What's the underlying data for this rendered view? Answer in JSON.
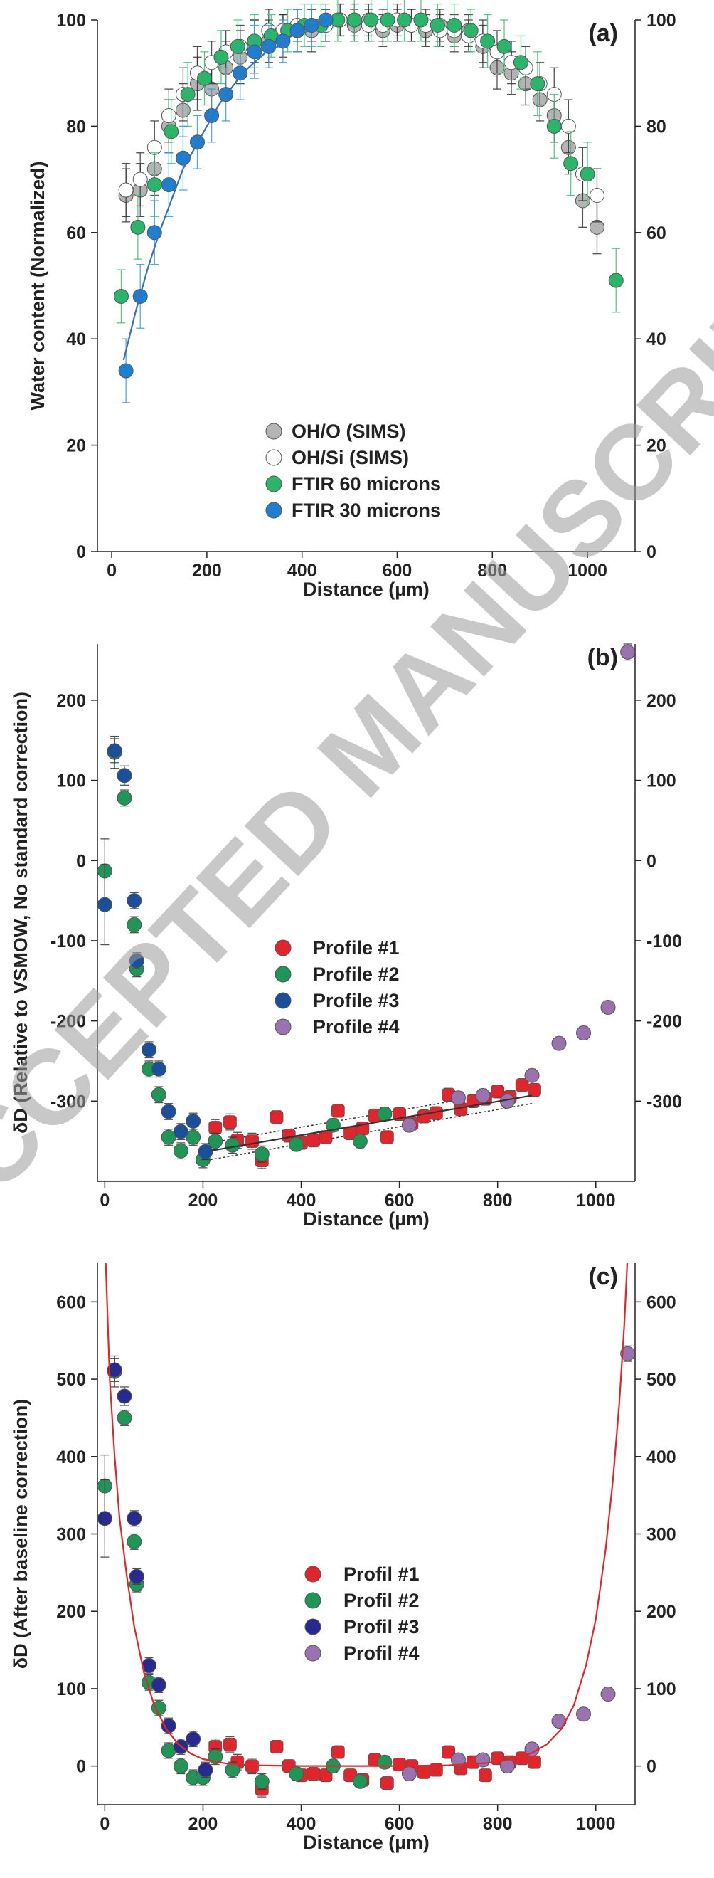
{
  "watermark": "ACCEPTED MANUSCRIPT",
  "colors": {
    "gray": "#b4b4b4",
    "white": "#ffffff",
    "green": "#2ab56a",
    "blue_a": "#1e7fd0",
    "red": "#e0262c",
    "green_b": "#1f9655",
    "navy_b": "#1b4f9a",
    "navy_c": "#272a8e",
    "purple": "#9b72b0",
    "fit_blue": "#3a6fb8",
    "fit_red": "#e0262c",
    "err_green": "#3fbf78",
    "err_blue": "#3b97dd",
    "err_dark": "#333333"
  },
  "chart_data": [
    {
      "id": "a",
      "type": "scatter",
      "panel_label": "(a)",
      "xlabel": "Distance (µm)",
      "ylabel": "Water content (Normalized)",
      "xlim": [
        -30,
        1100
      ],
      "ylim": [
        0,
        100
      ],
      "xticks": [
        0,
        200,
        400,
        600,
        800,
        1000
      ],
      "yticks": [
        0,
        20,
        40,
        60,
        80,
        100
      ],
      "right_axis": true,
      "grid": false,
      "legend_position": "lower-center",
      "series": [
        {
          "name": "OH/O (SIMS)",
          "color_key": "gray",
          "err_key": "err_dark",
          "x": [
            30,
            60,
            90,
            120,
            150,
            180,
            210,
            240,
            270,
            300,
            330,
            360,
            390,
            420,
            450,
            480,
            510,
            540,
            570,
            600,
            630,
            660,
            690,
            720,
            750,
            780,
            810,
            840,
            870,
            900,
            930,
            960,
            990,
            1020
          ],
          "y": [
            67,
            68,
            72,
            80,
            83,
            88,
            87,
            91,
            93,
            95,
            96,
            97,
            98,
            98,
            99,
            100,
            99,
            100,
            98,
            99,
            99,
            98,
            99,
            97,
            98,
            95,
            91,
            90,
            88,
            85,
            82,
            76,
            66,
            61
          ],
          "err": [
            5,
            5,
            5,
            5,
            5,
            5,
            5,
            5,
            5,
            5,
            4,
            4,
            4,
            4,
            3,
            3,
            3,
            3,
            3,
            3,
            3,
            3,
            3,
            3,
            3,
            4,
            4,
            4,
            4,
            4,
            5,
            5,
            5,
            5
          ]
        },
        {
          "name": "OH/Si (SIMS)",
          "color_key": "white",
          "err_key": "err_dark",
          "x": [
            30,
            60,
            90,
            120,
            150,
            180,
            210,
            240,
            270,
            300,
            330,
            360,
            390,
            420,
            450,
            480,
            510,
            540,
            570,
            600,
            630,
            660,
            690,
            720,
            750,
            780,
            810,
            840,
            870,
            900,
            930,
            960,
            990,
            1020
          ],
          "y": [
            68,
            70,
            76,
            82,
            86,
            90,
            92,
            94,
            95,
            96,
            98,
            98,
            99,
            99,
            99,
            100,
            100,
            99,
            99,
            100,
            99,
            99,
            98,
            98,
            97,
            96,
            94,
            92,
            91,
            88,
            86,
            80,
            71,
            67
          ],
          "err": [
            5,
            5,
            5,
            5,
            5,
            5,
            4,
            4,
            4,
            4,
            4,
            3,
            3,
            3,
            3,
            3,
            3,
            3,
            3,
            3,
            3,
            3,
            3,
            3,
            3,
            4,
            4,
            4,
            4,
            4,
            5,
            5,
            5,
            5
          ]
        },
        {
          "name": "FTIR 60 microns",
          "color_key": "green",
          "err_key": "err_green",
          "x": [
            20,
            55,
            90,
            125,
            160,
            195,
            230,
            265,
            300,
            335,
            370,
            405,
            440,
            475,
            510,
            545,
            580,
            615,
            650,
            685,
            720,
            755,
            790,
            825,
            860,
            895,
            930,
            965,
            1000,
            1060
          ],
          "y": [
            48,
            61,
            69,
            79,
            86,
            89,
            93,
            95,
            96,
            97,
            98,
            99,
            99,
            100,
            100,
            100,
            100,
            100,
            100,
            99,
            99,
            98,
            96,
            95,
            92,
            88,
            80,
            73,
            71,
            51
          ],
          "err": [
            5,
            6,
            6,
            6,
            6,
            5,
            5,
            5,
            5,
            4,
            4,
            4,
            4,
            4,
            4,
            4,
            4,
            4,
            4,
            4,
            4,
            4,
            5,
            5,
            5,
            6,
            6,
            6,
            6,
            6
          ]
        },
        {
          "name": "FTIR 30 microns",
          "color_key": "blue_a",
          "err_key": "err_blue",
          "x": [
            30,
            60,
            90,
            120,
            150,
            180,
            210,
            240,
            270,
            300,
            330,
            360,
            390,
            420,
            450
          ],
          "y": [
            34,
            48,
            60,
            69,
            74,
            77,
            82,
            86,
            90,
            94,
            95,
            96,
            98,
            99,
            100
          ],
          "err": [
            6,
            6,
            6,
            6,
            6,
            5,
            5,
            5,
            5,
            5,
            4,
            4,
            4,
            4,
            3
          ]
        }
      ],
      "fits": [
        {
          "color_key": "fit_blue",
          "x": [
            25,
            50,
            75,
            100,
            125,
            150,
            175,
            200,
            225,
            250,
            275,
            300,
            325,
            350,
            375,
            400,
            425,
            450
          ],
          "y": [
            36,
            45,
            53,
            60,
            66,
            72,
            76,
            80,
            84,
            87,
            90,
            92,
            94,
            95,
            97,
            98,
            99,
            100
          ]
        }
      ]
    },
    {
      "id": "b",
      "type": "scatter",
      "panel_label": "(b)",
      "xlabel": "Distance (µm)",
      "ylabel": "δD  (Relative to VSMOW, No standard correction)",
      "xlim": [
        -15,
        1080
      ],
      "ylim": [
        -400,
        270
      ],
      "xticks": [
        0,
        200,
        400,
        600,
        800,
        1000
      ],
      "yticks": [
        -300,
        -200,
        -100,
        0,
        100,
        200
      ],
      "right_axis": true,
      "grid": false,
      "legend_position": "center",
      "series": [
        {
          "name": "Profile #1",
          "color_key": "red",
          "err_key": "err_dark",
          "marker": "square",
          "x": [
            225,
            255,
            270,
            300,
            320,
            350,
            375,
            400,
            425,
            450,
            475,
            500,
            525,
            550,
            575,
            600,
            625,
            650,
            675,
            700,
            725,
            750,
            775,
            800,
            825,
            850,
            875
          ],
          "y": [
            -333,
            -326,
            -349,
            -350,
            -374,
            -320,
            -343,
            -352,
            -349,
            -345,
            -312,
            -340,
            -334,
            -318,
            -345,
            -316,
            -328,
            -319,
            -315,
            -292,
            -310,
            -300,
            -297,
            -288,
            -295,
            -280,
            -286
          ],
          "err": [
            10,
            10,
            10,
            10,
            10,
            8,
            8,
            8,
            8,
            8,
            8,
            8,
            8,
            8,
            8,
            8,
            8,
            8,
            8,
            8,
            8,
            8,
            8,
            8,
            8,
            8,
            8
          ]
        },
        {
          "name": "Profile #2",
          "color_key": "green_b",
          "err_key": "err_dark",
          "marker": "circle",
          "x": [
            0,
            20,
            40,
            60,
            65,
            90,
            110,
            130,
            155,
            180,
            200,
            225,
            260,
            320,
            390,
            465,
            520,
            570
          ],
          "y": [
            -13,
            135,
            78,
            -80,
            -135,
            -260,
            -292,
            -345,
            -362,
            -345,
            -373,
            -350,
            -355,
            -366,
            -354,
            -330,
            -350,
            -316
          ],
          "err": [
            40,
            20,
            10,
            10,
            10,
            10,
            10,
            10,
            10,
            10,
            10,
            10,
            10,
            10,
            8,
            8,
            8,
            8
          ]
        },
        {
          "name": "Profile #3",
          "color_key": "navy_b",
          "err_key": "err_dark",
          "marker": "circle",
          "x": [
            0,
            20,
            40,
            60,
            65,
            90,
            110,
            130,
            155,
            180,
            205
          ],
          "y": [
            -55,
            137,
            106,
            -50,
            -125,
            -236,
            -260,
            -313,
            -338,
            -325,
            -363
          ],
          "err": [
            50,
            15,
            12,
            10,
            10,
            10,
            10,
            10,
            10,
            10,
            10
          ]
        },
        {
          "name": "Profile #4",
          "color_key": "purple",
          "err_key": "err_dark",
          "marker": "circle",
          "x": [
            620,
            720,
            770,
            820,
            870,
            925,
            975,
            1025,
            1065
          ],
          "y": [
            -330,
            -296,
            -293,
            -300,
            -268,
            -228,
            -215,
            -183,
            260
          ],
          "err": [
            8,
            8,
            8,
            8,
            8,
            8,
            8,
            8,
            10
          ]
        }
      ],
      "fits": [
        {
          "color_key": "err_dark",
          "x": [
            215,
            870
          ],
          "y": [
            -362,
            -293
          ]
        }
      ],
      "bands": [
        {
          "color_key": "err_dark",
          "x": [
            215,
            870
          ],
          "y_upper": [
            -352,
            -283
          ],
          "y_lower": [
            -373,
            -303
          ]
        }
      ]
    },
    {
      "id": "c",
      "type": "scatter",
      "panel_label": "(c)",
      "xlabel": "Distance (µm)",
      "ylabel": "δD  (After baseline correction)",
      "xlim": [
        -15,
        1080
      ],
      "ylim": [
        -50,
        650
      ],
      "xticks": [
        0,
        200,
        400,
        600,
        800,
        1000
      ],
      "yticks": [
        0,
        100,
        200,
        300,
        400,
        500,
        600
      ],
      "right_axis": true,
      "grid": false,
      "legend_position": "center",
      "series": [
        {
          "name": "Profil #1",
          "color_key": "red",
          "err_key": "err_dark",
          "marker": "square",
          "x": [
            225,
            255,
            270,
            300,
            320,
            350,
            375,
            400,
            425,
            450,
            475,
            500,
            525,
            550,
            575,
            600,
            625,
            650,
            675,
            700,
            725,
            750,
            775,
            800,
            825,
            850,
            875
          ],
          "y": [
            25,
            28,
            5,
            0,
            -30,
            25,
            0,
            -12,
            -10,
            -12,
            18,
            -12,
            -18,
            8,
            -22,
            2,
            0,
            -8,
            -5,
            18,
            -3,
            5,
            -12,
            10,
            5,
            10,
            5
          ],
          "err": [
            10,
            10,
            10,
            10,
            10,
            8,
            8,
            8,
            8,
            8,
            8,
            8,
            8,
            8,
            8,
            8,
            8,
            8,
            8,
            8,
            8,
            8,
            8,
            8,
            8,
            8,
            8
          ]
        },
        {
          "name": "Profil #2",
          "color_key": "green_b",
          "err_key": "err_dark",
          "marker": "circle",
          "x": [
            0,
            20,
            40,
            60,
            65,
            90,
            110,
            130,
            155,
            180,
            200,
            225,
            260,
            320,
            390,
            465,
            520,
            570
          ],
          "y": [
            362,
            510,
            450,
            290,
            235,
            108,
            75,
            20,
            0,
            -15,
            -15,
            12,
            -5,
            -20,
            -10,
            0,
            -20,
            5
          ],
          "err": [
            40,
            20,
            10,
            10,
            10,
            10,
            10,
            10,
            10,
            10,
            10,
            10,
            10,
            10,
            8,
            8,
            8,
            8
          ]
        },
        {
          "name": "Profil #3",
          "color_key": "navy_c",
          "err_key": "err_dark",
          "marker": "circle",
          "x": [
            0,
            20,
            40,
            60,
            65,
            90,
            110,
            130,
            155,
            180,
            205
          ],
          "y": [
            320,
            512,
            478,
            320,
            245,
            130,
            105,
            52,
            25,
            35,
            -5
          ],
          "err": [
            50,
            15,
            12,
            10,
            10,
            10,
            10,
            10,
            10,
            10,
            10
          ]
        },
        {
          "name": "Profil #4",
          "color_key": "purple",
          "err_key": "err_dark",
          "marker": "circle",
          "x": [
            620,
            720,
            770,
            820,
            870,
            925,
            975,
            1025,
            1065
          ],
          "y": [
            -10,
            8,
            8,
            0,
            22,
            58,
            67,
            93,
            533
          ],
          "err": [
            8,
            8,
            8,
            8,
            8,
            8,
            8,
            8,
            10
          ]
        }
      ],
      "fits": [
        {
          "color_key": "fit_red",
          "x": [
            2,
            10,
            20,
            30,
            45,
            60,
            80,
            100,
            125,
            150,
            175,
            200,
            250,
            300,
            400,
            500,
            600,
            700,
            780,
            830,
            870,
            900,
            930,
            955,
            980,
            1000,
            1020,
            1035,
            1048,
            1058,
            1064
          ],
          "y": [
            650,
            500,
            400,
            320,
            245,
            180,
            120,
            80,
            48,
            28,
            16,
            9,
            3,
            1,
            0,
            0,
            0,
            1,
            4,
            9,
            17,
            28,
            48,
            78,
            130,
            190,
            280,
            370,
            470,
            570,
            650
          ]
        }
      ]
    }
  ]
}
